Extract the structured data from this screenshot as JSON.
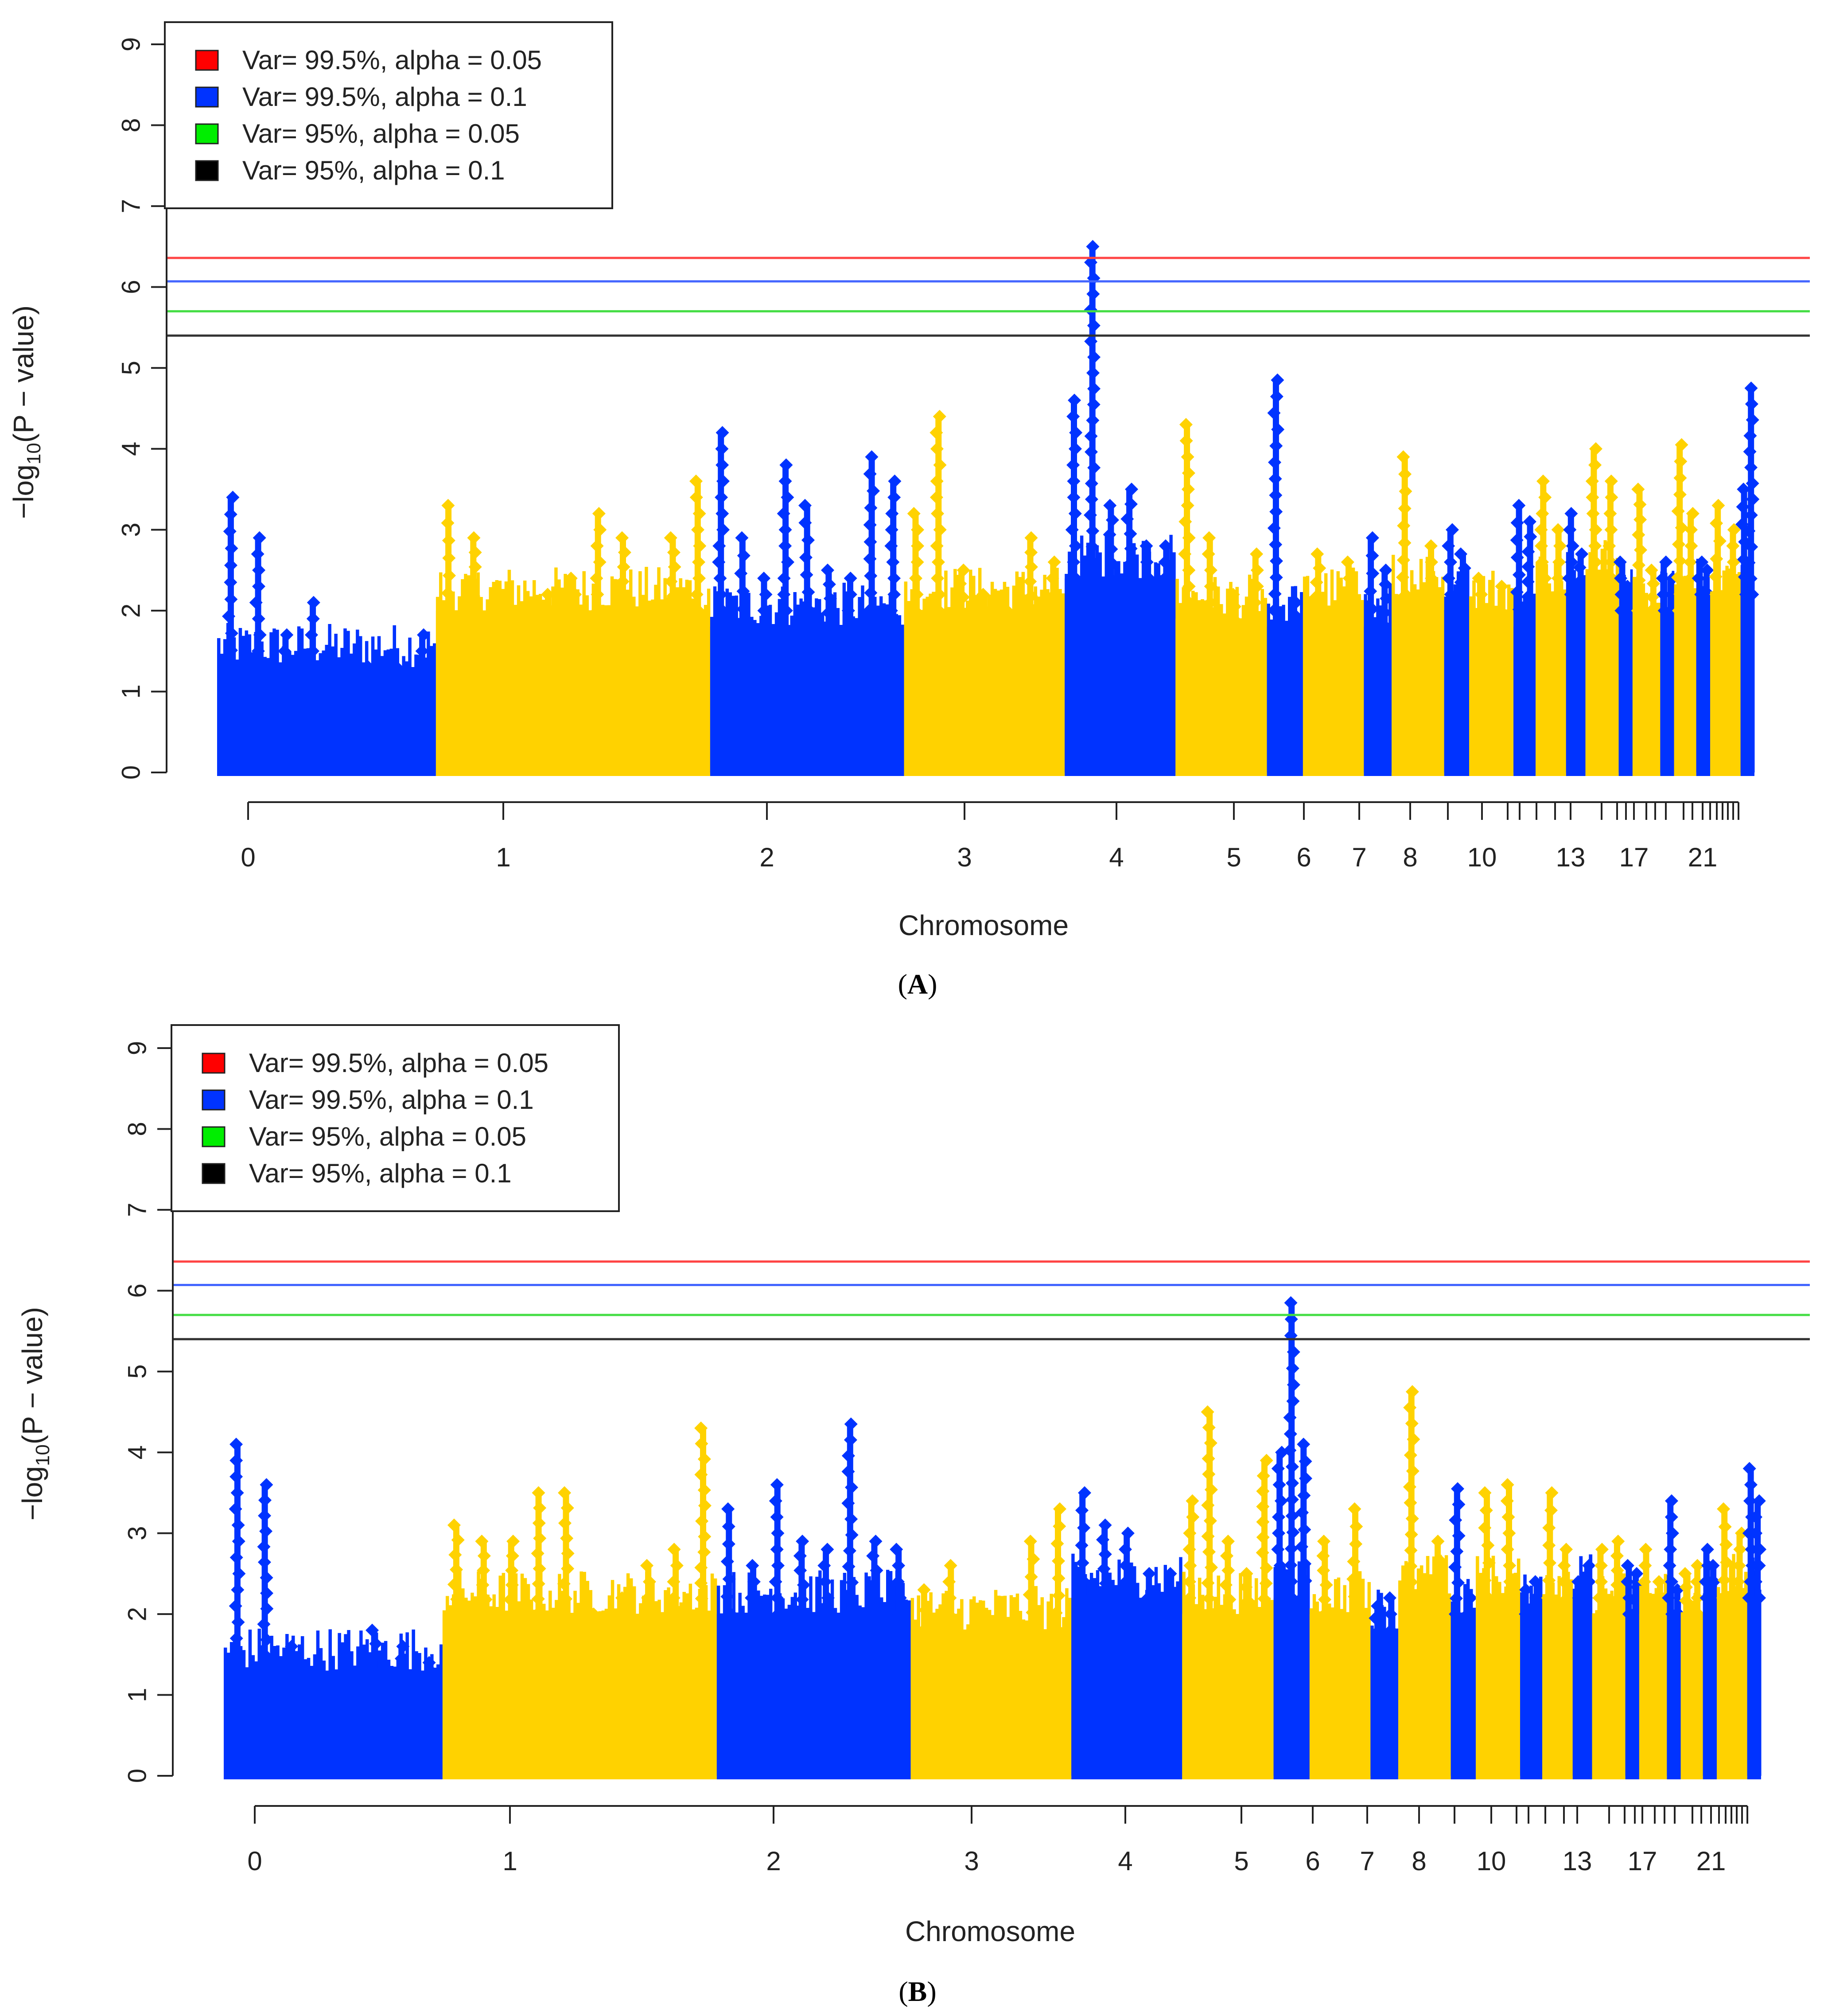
{
  "chart_data": [
    {
      "type": "scatter",
      "subtype": "manhattan",
      "panel_label": "A",
      "xlabel": "Chromosome",
      "ylabel": "-log10(P - value)",
      "ylabel_parts": {
        "prefix": "−log",
        "sub": "10",
        "suffix": "(P − value)"
      },
      "ylim": [
        0,
        9
      ],
      "y_ticks": [
        "0",
        "1",
        "2",
        "3",
        "4",
        "5",
        "6",
        "7",
        "8",
        "9"
      ],
      "x_tick_labels": [
        "0",
        "1",
        "2",
        "3",
        "4",
        "5",
        "6",
        "7",
        "8",
        "10",
        "13",
        "17",
        "21"
      ],
      "legend": [
        {
          "label": "Var= 99.5%, alpha = 0.05",
          "color": "#ff0000"
        },
        {
          "label": "Var= 99.5%, alpha = 0.1",
          "color": "#0033ff"
        },
        {
          "label": "Var= 95%, alpha = 0.05",
          "color": "#00ee00"
        },
        {
          "label": "Var= 95%, alpha = 0.1",
          "color": "#000000"
        }
      ],
      "thresholds": [
        {
          "name": "Var= 99.5%, alpha = 0.05",
          "y": 6.36,
          "color": "#ff4444"
        },
        {
          "name": "Var= 99.5%, alpha = 0.1",
          "y": 6.07,
          "color": "#4466ff"
        },
        {
          "name": "Var= 95%, alpha = 0.05",
          "y": 5.7,
          "color": "#44dd44"
        },
        {
          "name": "Var= 95%, alpha = 0.1",
          "y": 5.4,
          "color": "#333333"
        }
      ],
      "series_colors": [
        "#0033ff",
        "#ffd200"
      ],
      "segments": [
        {
          "chr": "0",
          "base": 1.3,
          "peaks": [
            3.4,
            2.9,
            1.7,
            2.1,
            0.8,
            0.5,
            1.0,
            1.7
          ]
        },
        {
          "chr": "1",
          "base": 2.0,
          "peaks": [
            3.3,
            2.9,
            2.1,
            1.8,
            2.2,
            2.4,
            3.2,
            2.9,
            2.0,
            2.9,
            3.6
          ]
        },
        {
          "chr": "2",
          "base": 1.8,
          "peaks": [
            4.2,
            2.9,
            2.4,
            3.8,
            3.3,
            2.5,
            2.4,
            3.9,
            3.6
          ]
        },
        {
          "chr": "3",
          "base": 2.0,
          "peaks": [
            3.2,
            4.4,
            2.5,
            2.2,
            1.9,
            2.9,
            2.6
          ]
        },
        {
          "chr": "4",
          "base": 2.4,
          "peaks": [
            4.6,
            6.5,
            3.3,
            3.5,
            2.8,
            2.8
          ]
        },
        {
          "chr": "5",
          "base": 1.9,
          "peaks": [
            4.3,
            2.9,
            2.2,
            2.7
          ]
        },
        {
          "chr": "6",
          "base": 1.8,
          "peaks": [
            4.85,
            2.1
          ]
        },
        {
          "chr": "7",
          "base": 2.0,
          "peaks": [
            2.7,
            2.6
          ]
        },
        {
          "chr": "8",
          "base": 1.8,
          "peaks": [
            2.9,
            2.5
          ]
        },
        {
          "chr": "9",
          "base": 2.2,
          "peaks": [
            3.9,
            2.8
          ]
        },
        {
          "chr": "10",
          "base": 2.0,
          "peaks": [
            3.0,
            2.7
          ]
        },
        {
          "chr": "11",
          "base": 2.0,
          "peaks": [
            2.4,
            2.3
          ]
        },
        {
          "chr": "12",
          "base": 1.8,
          "peaks": [
            3.3,
            3.1
          ]
        },
        {
          "chr": "13",
          "base": 2.2,
          "peaks": [
            3.6,
            3.0
          ]
        },
        {
          "chr": "14",
          "base": 2.2,
          "peaks": [
            3.2,
            2.7
          ]
        },
        {
          "chr": "15",
          "base": 2.4,
          "peaks": [
            4.0,
            3.6
          ]
        },
        {
          "chr": "16",
          "base": 2.0,
          "peaks": [
            2.6,
            2.3
          ]
        },
        {
          "chr": "17",
          "base": 2.0,
          "peaks": [
            3.5,
            2.5
          ]
        },
        {
          "chr": "18",
          "base": 2.0,
          "peaks": [
            2.6,
            2.4
          ]
        },
        {
          "chr": "19",
          "base": 2.0,
          "peaks": [
            4.05,
            3.2
          ]
        },
        {
          "chr": "20",
          "base": 2.2,
          "peaks": [
            2.6,
            2.5
          ]
        },
        {
          "chr": "21",
          "base": 2.2,
          "peaks": [
            3.3,
            3.0
          ]
        },
        {
          "chr": "22",
          "base": 2.2,
          "peaks": [
            3.5,
            4.75
          ]
        }
      ]
    },
    {
      "type": "scatter",
      "subtype": "manhattan",
      "panel_label": "B",
      "xlabel": "Chromosome",
      "ylabel": "-log10(P - value)",
      "ylabel_parts": {
        "prefix": "−log",
        "sub": "10",
        "suffix": "(P − value)"
      },
      "ylim": [
        0,
        9
      ],
      "y_ticks": [
        "0",
        "1",
        "2",
        "3",
        "4",
        "5",
        "6",
        "7",
        "8",
        "9"
      ],
      "x_tick_labels": [
        "0",
        "1",
        "2",
        "3",
        "4",
        "5",
        "6",
        "7",
        "8",
        "10",
        "13",
        "17",
        "21"
      ],
      "legend": [
        {
          "label": "Var= 99.5%, alpha = 0.05",
          "color": "#ff0000"
        },
        {
          "label": "Var= 99.5%, alpha = 0.1",
          "color": "#0033ff"
        },
        {
          "label": "Var= 95%, alpha = 0.05",
          "color": "#00ee00"
        },
        {
          "label": "Var= 95%, alpha = 0.1",
          "color": "#000000"
        }
      ],
      "thresholds": [
        {
          "name": "Var= 99.5%, alpha = 0.05",
          "y": 6.36,
          "color": "#ff4444"
        },
        {
          "name": "Var= 99.5%, alpha = 0.1",
          "y": 6.07,
          "color": "#4466ff"
        },
        {
          "name": "Var= 95%, alpha = 0.05",
          "y": 5.7,
          "color": "#44dd44"
        },
        {
          "name": "Var= 95%, alpha = 0.1",
          "y": 5.4,
          "color": "#333333"
        }
      ],
      "series_colors": [
        "#0033ff",
        "#ffd200"
      ],
      "segments": [
        {
          "chr": "0",
          "base": 1.3,
          "peaks": [
            4.1,
            3.6,
            1.6,
            0.7,
            0.5,
            1.8,
            1.6,
            1.4
          ]
        },
        {
          "chr": "1",
          "base": 2.0,
          "peaks": [
            3.1,
            2.9,
            2.9,
            3.5,
            3.5,
            2.0,
            2.2,
            2.6,
            2.8,
            4.3
          ]
        },
        {
          "chr": "2",
          "base": 2.0,
          "peaks": [
            3.3,
            2.6,
            3.6,
            2.9,
            2.8,
            4.35,
            2.9,
            2.8
          ]
        },
        {
          "chr": "3",
          "base": 1.8,
          "peaks": [
            2.3,
            2.6,
            1.9,
            1.6,
            2.9,
            3.3
          ]
        },
        {
          "chr": "4",
          "base": 2.2,
          "peaks": [
            3.5,
            3.1,
            3.0,
            2.5,
            2.5
          ]
        },
        {
          "chr": "5",
          "base": 2.0,
          "peaks": [
            3.4,
            4.5,
            2.9,
            2.5,
            3.9
          ]
        },
        {
          "chr": "6",
          "base": 2.2,
          "peaks": [
            4.0,
            5.85,
            4.1
          ]
        },
        {
          "chr": "7",
          "base": 2.0,
          "peaks": [
            2.9,
            3.3
          ]
        },
        {
          "chr": "8",
          "base": 1.8,
          "peaks": [
            2.1,
            2.2
          ]
        },
        {
          "chr": "9",
          "base": 2.2,
          "peaks": [
            4.75,
            2.9
          ]
        },
        {
          "chr": "10",
          "base": 2.0,
          "peaks": [
            3.55,
            2.2
          ]
        },
        {
          "chr": "11",
          "base": 2.2,
          "peaks": [
            3.5,
            3.6
          ]
        },
        {
          "chr": "12",
          "base": 2.0,
          "peaks": [
            2.3,
            2.4
          ]
        },
        {
          "chr": "13",
          "base": 2.2,
          "peaks": [
            3.5,
            2.8
          ]
        },
        {
          "chr": "14",
          "base": 2.2,
          "peaks": [
            2.4,
            2.6
          ]
        },
        {
          "chr": "15",
          "base": 2.0,
          "peaks": [
            2.8,
            2.9
          ]
        },
        {
          "chr": "16",
          "base": 2.0,
          "peaks": [
            2.6,
            2.5
          ]
        },
        {
          "chr": "17",
          "base": 2.0,
          "peaks": [
            2.8,
            2.4
          ]
        },
        {
          "chr": "18",
          "base": 2.0,
          "peaks": [
            3.4,
            2.3
          ]
        },
        {
          "chr": "19",
          "base": 2.0,
          "peaks": [
            2.5,
            2.6
          ]
        },
        {
          "chr": "20",
          "base": 2.2,
          "peaks": [
            2.8,
            2.6
          ]
        },
        {
          "chr": "21",
          "base": 2.2,
          "peaks": [
            3.3,
            3.0
          ]
        },
        {
          "chr": "22",
          "base": 2.2,
          "peaks": [
            3.8,
            3.4
          ]
        }
      ]
    }
  ]
}
